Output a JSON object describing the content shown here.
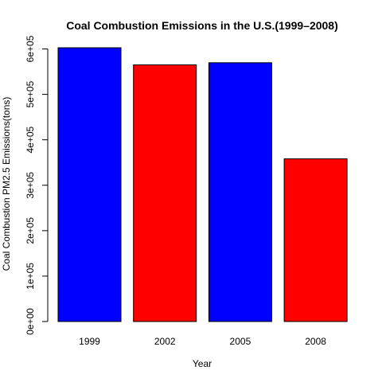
{
  "chart_data": {
    "type": "bar",
    "title": "Coal Combustion Emissions in the U.S.(1999–2008)",
    "xlabel": "Year",
    "ylabel": "Coal Combustion PM2.5 Emissions(tons)",
    "categories": [
      "1999",
      "2002",
      "2005",
      "2008"
    ],
    "values": [
      602624,
      564940,
      569654,
      358084
    ],
    "colors": [
      "#0000ff",
      "#ff0000",
      "#0000ff",
      "#ff0000"
    ],
    "yticks": [
      0,
      100000,
      200000,
      300000,
      400000,
      500000,
      600000
    ],
    "ytick_labels": [
      "0e+00",
      "1e+05",
      "2e+05",
      "3e+05",
      "4e+05",
      "5e+05",
      "6e+05"
    ],
    "ylim": [
      0,
      602624
    ],
    "grid": false,
    "legend": "none"
  }
}
